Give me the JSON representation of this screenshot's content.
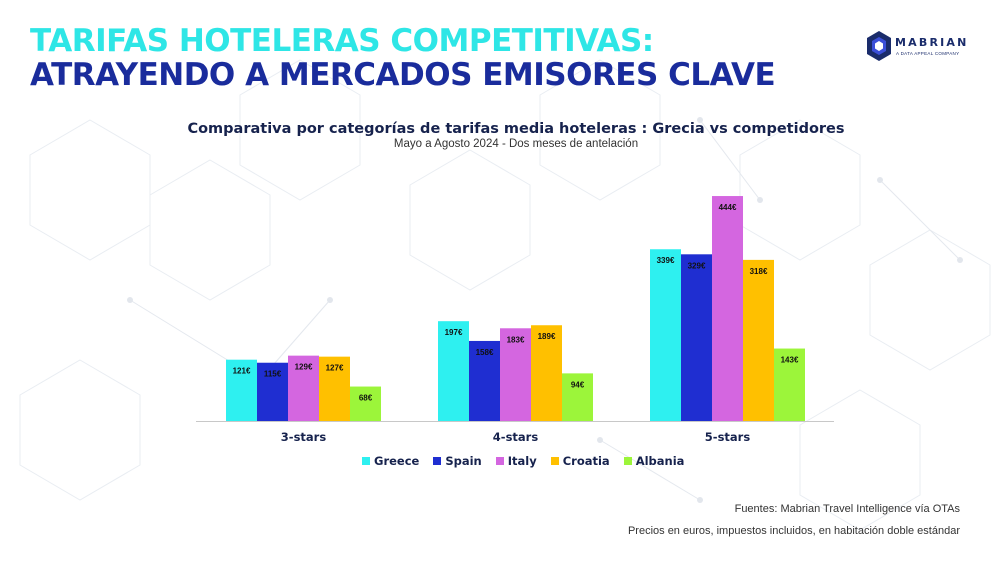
{
  "header": {
    "line1": "TARIFAS HOTELERAS COMPETITIVAS:",
    "line2": "ATRAYENDO A MERCADOS EMISORES CLAVE"
  },
  "logo": {
    "name": "MABRIAN",
    "subtitle": "A DATA APPEAL COMPANY"
  },
  "notes": {
    "source": "Fuentes: Mabrian Travel Intelligence vía OTAs",
    "prices": "Precios en euros,  impuestos incluidos, en habitación doble estándar"
  },
  "chart_data": {
    "type": "bar",
    "title": "Comparativa por categorías de tarifas media hoteleras : Grecia vs competidores",
    "subtitle": "Mayo  a Agosto 2024 - Dos meses de antelación",
    "categories": [
      "3-stars",
      "4-stars",
      "5-stars"
    ],
    "series": [
      {
        "name": "Greece",
        "color": "#2ef0f0",
        "values": [
          121,
          197,
          339
        ],
        "labels": [
          "121€",
          "197€",
          "339€"
        ]
      },
      {
        "name": "Spain",
        "color": "#1f2ed1",
        "values": [
          115,
          158,
          329
        ],
        "labels": [
          "115€",
          "158€",
          "329€"
        ]
      },
      {
        "name": "Italy",
        "color": "#d466e0",
        "values": [
          129,
          183,
          444
        ],
        "labels": [
          "129€",
          "183€",
          "444€"
        ]
      },
      {
        "name": "Croatia",
        "color": "#ffc000",
        "values": [
          127,
          189,
          318
        ],
        "labels": [
          "127€",
          "189€",
          "318€"
        ]
      },
      {
        "name": "Albania",
        "color": "#9cf53a",
        "values": [
          68,
          94,
          143
        ],
        "labels": [
          "68€",
          "94€",
          "143€"
        ]
      }
    ],
    "ylim": [
      0,
      450
    ],
    "legend_position": "bottom",
    "grid": false
  }
}
